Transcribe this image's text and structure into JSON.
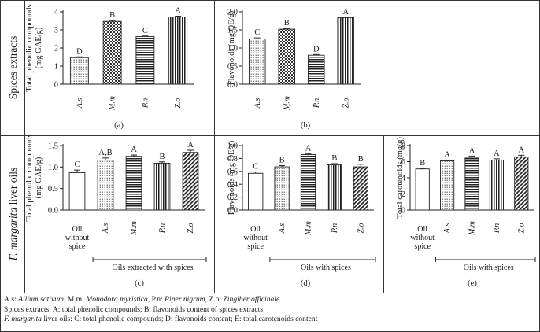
{
  "row_labels": {
    "row1": "Spices extracts",
    "row2_italic": "F. margarita",
    "row2_rest": " liver oils"
  },
  "chart_data": [
    {
      "id": "a",
      "type": "bar",
      "ylabel": [
        "Total phenolic compounds",
        "(mg GAE/g)"
      ],
      "categories": [
        "A.s",
        "M.m",
        "P.n",
        "Z.o"
      ],
      "values": [
        1.47,
        3.47,
        2.63,
        3.72
      ],
      "errors": [
        0.04,
        0.05,
        0.03,
        0.04
      ],
      "letters": [
        "D",
        "B",
        "C",
        "A"
      ],
      "patterns": [
        "dots",
        "checks",
        "hlines",
        "vlines"
      ],
      "ylim": [
        0,
        4
      ],
      "yticks": [
        0,
        1,
        2,
        3,
        4
      ],
      "ytick_labels": [
        "0",
        "1",
        "2",
        "3",
        "4"
      ],
      "panel_label": "(a)"
    },
    {
      "id": "b",
      "type": "bar",
      "ylabel": [
        "Flavonoids (mg QE/g)"
      ],
      "categories": [
        "A.s",
        "M.m",
        "P.n",
        "Z.o"
      ],
      "values": [
        1.25,
        1.52,
        0.8,
        1.84
      ],
      "errors": [
        0.03,
        0.02,
        0.02,
        0.01
      ],
      "letters": [
        "C",
        "B",
        "D",
        "A"
      ],
      "patterns": [
        "dots",
        "checks",
        "hlines",
        "vlines"
      ],
      "ylim": [
        0,
        2
      ],
      "yticks": [
        0,
        0.5,
        1,
        1.5,
        2
      ],
      "ytick_labels": [
        "0.0",
        "0.5",
        "1.0",
        "1.5",
        "2.0"
      ],
      "panel_label": "(b)"
    },
    {
      "id": "c",
      "type": "bar",
      "ylabel": [
        "Total phenolic compounds",
        "(mg GAE/g)"
      ],
      "categories": [
        "Oil without spice",
        "A.s",
        "M.m",
        "P.n",
        "Z.o"
      ],
      "values": [
        0.87,
        1.16,
        1.25,
        1.09,
        1.34
      ],
      "errors": [
        0.06,
        0.05,
        0.03,
        0.03,
        0.05
      ],
      "letters": [
        "C",
        "A,B",
        "A",
        "B",
        "A"
      ],
      "patterns": [
        "plain",
        "dots",
        "hlines",
        "vlines",
        "diag"
      ],
      "ylim": [
        0,
        1.5
      ],
      "yticks": [
        0,
        0.5,
        1,
        1.5
      ],
      "ytick_labels": [
        "0.0",
        "0.5",
        "1.0",
        "1.5"
      ],
      "group_label": "Oils extracted with spices",
      "panel_label": "(c)"
    },
    {
      "id": "d",
      "type": "bar",
      "ylabel": [
        "Flavonoids (mg QE/g)"
      ],
      "categories": [
        "Oil without spice",
        "A.s",
        "M.m",
        "P.n",
        "Z.o"
      ],
      "values": [
        0.57,
        0.67,
        0.86,
        0.7,
        0.67
      ],
      "errors": [
        0.02,
        0.02,
        0.015,
        0.02,
        0.04
      ],
      "letters": [
        "C",
        "B",
        "A",
        "B",
        "B"
      ],
      "patterns": [
        "plain",
        "dots",
        "hlines",
        "vlines",
        "diag"
      ],
      "ylim": [
        0,
        1
      ],
      "yticks": [
        0,
        0.2,
        0.4,
        0.6,
        0.8,
        1
      ],
      "ytick_labels": [
        "0.0",
        "0.2",
        "0.4",
        "0.6",
        "0.8",
        "1.0"
      ],
      "group_label": "Oils with spices",
      "panel_label": "(d)"
    },
    {
      "id": "e",
      "type": "bar",
      "ylabel": [
        "Total carotenoids (mg/g)"
      ],
      "categories": [
        "Oil without spice",
        "A.s",
        "M.m",
        "P.n",
        "Z.o"
      ],
      "values": [
        5.1,
        6.1,
        6.45,
        6.2,
        6.6
      ],
      "errors": [
        0.08,
        0.1,
        0.25,
        0.15,
        0.2
      ],
      "letters": [
        "B",
        "A",
        "A",
        "A",
        "A"
      ],
      "patterns": [
        "plain",
        "dots",
        "hlines",
        "vlines",
        "diag"
      ],
      "ylim": [
        0,
        8
      ],
      "yticks": [
        0,
        2,
        4,
        6,
        8
      ],
      "ytick_labels": [
        "0",
        "2",
        "4",
        "6",
        "8"
      ],
      "group_label": "Oils with spices",
      "panel_label": "(e)"
    }
  ],
  "caption": {
    "line1": [
      {
        "t": "A.s: ",
        "i": false
      },
      {
        "t": "Allium sativum",
        "i": true
      },
      {
        "t": ", M.m: ",
        "i": false
      },
      {
        "t": "Monodora myristica",
        "i": true
      },
      {
        "t": ", P.n: ",
        "i": false
      },
      {
        "t": "Piper nigrum",
        "i": true
      },
      {
        "t": ", Z.o: ",
        "i": false
      },
      {
        "t": "Zingiber officinale",
        "i": true
      }
    ],
    "line2": [
      {
        "t": "Spices extracts: A: total phenolic compounds; B: flavonoids content of spices extracts",
        "i": false
      }
    ],
    "line3": [
      {
        "t": "F. margarita",
        "i": true
      },
      {
        "t": " liver oils: C: total phenolic compounds; D: flavonoids content; E: total carotenoids content",
        "i": false
      }
    ]
  }
}
